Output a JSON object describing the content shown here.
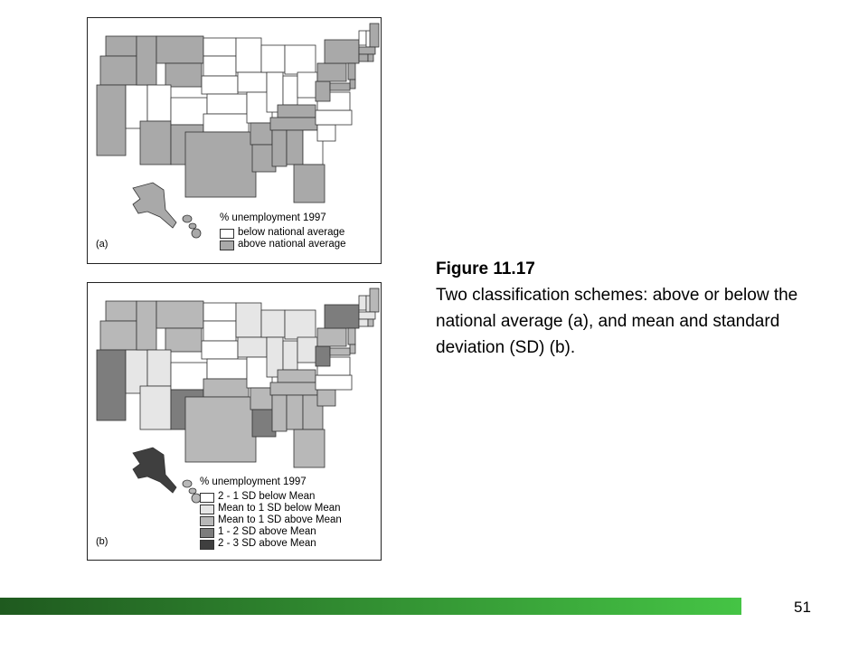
{
  "figure": {
    "title": "Figure 11.17",
    "caption": "Two classification schemes: above or below the national average (a), and mean and standard deviation (SD) (b)."
  },
  "colors": {
    "white": "#ffffff",
    "light": "#e6e6e6",
    "medium": "#b8b8b8",
    "dark": "#7d7d7d",
    "darkest": "#3f3f3f",
    "above_avg": "#a9a9a9",
    "footer_start": "#1f5a1f",
    "footer_end": "#45c445"
  },
  "map_a": {
    "label": "(a)",
    "legend_title": "% unemployment 1997",
    "legend": [
      {
        "label": "below national average",
        "color": "#ffffff"
      },
      {
        "label": "above national average",
        "color": "#a9a9a9"
      }
    ]
  },
  "map_b": {
    "label": "(b)",
    "legend_title": "% unemployment 1997",
    "legend": [
      {
        "label": "2 - 1 SD below Mean",
        "color": "#ffffff"
      },
      {
        "label": "Mean to 1 SD below Mean",
        "color": "#e6e6e6"
      },
      {
        "label": "Mean to 1 SD above Mean",
        "color": "#b8b8b8"
      },
      {
        "label": "1 - 2 SD above Mean",
        "color": "#7d7d7d"
      },
      {
        "label": "2 - 3 SD above Mean",
        "color": "#3f3f3f"
      }
    ]
  },
  "page_number": "51"
}
